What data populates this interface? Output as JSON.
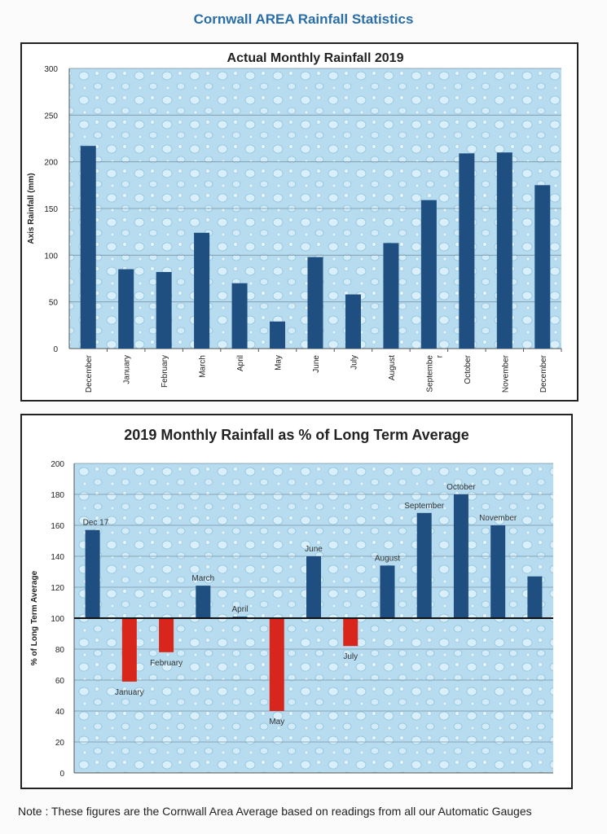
{
  "page": {
    "title": "Cornwall AREA Rainfall Statistics",
    "note": "Note : These figures are the Cornwall Area Average based on readings from all our Automatic Gauges"
  },
  "colors": {
    "title_blue": "#2a6ea8",
    "bar_blue": "#1f4e80",
    "bar_red": "#d9261c",
    "plot_bg": "#b8dcef"
  },
  "chart_data": [
    {
      "type": "bar",
      "title": "Actual Monthly Rainfall 2019",
      "xlabel": "",
      "ylabel": "Axis Rainfall (mm)",
      "ylim": [
        0,
        300
      ],
      "yticks": [
        0,
        50,
        100,
        150,
        200,
        250,
        300
      ],
      "grid": true,
      "categories": [
        "December",
        "January",
        "February",
        "March",
        "April",
        "May",
        "June",
        "July",
        "August",
        "Septembe\nr",
        "October",
        "November",
        "December"
      ],
      "values": [
        217,
        85,
        82,
        124,
        70,
        29,
        98,
        58,
        113,
        159,
        209,
        210,
        175
      ]
    },
    {
      "type": "bar",
      "title": "2019 Monthly Rainfall as % of Long Term Average",
      "xlabel": "",
      "ylabel": "% of Long Term Average",
      "ylim": [
        0,
        200
      ],
      "yticks": [
        0,
        20,
        40,
        60,
        80,
        100,
        120,
        140,
        160,
        180,
        200
      ],
      "baseline": 100,
      "grid": true,
      "categories": [
        "Dec 17",
        "January",
        "February",
        "March",
        "April",
        "May",
        "June",
        "July",
        "August",
        "September",
        "October",
        "November",
        ""
      ],
      "values": [
        157,
        59,
        78,
        121,
        101,
        40,
        140,
        82,
        134,
        168,
        180,
        160,
        127
      ]
    }
  ]
}
